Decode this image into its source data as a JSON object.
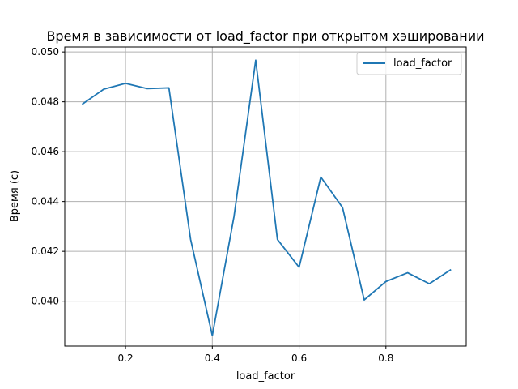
{
  "chart_data": {
    "type": "line",
    "title": "Время в зависимости от load_factor при открытом хэшировании",
    "xlabel": "load_factor",
    "ylabel": "Время (с)",
    "xlim": [
      0.06,
      0.985
    ],
    "ylim": [
      0.0382,
      0.0502
    ],
    "xticks": [
      0.2,
      0.4,
      0.6,
      0.8
    ],
    "xtick_labels": [
      "0.2",
      "0.4",
      "0.6",
      "0.8"
    ],
    "yticks": [
      0.04,
      0.042,
      0.044,
      0.046,
      0.048,
      0.05
    ],
    "ytick_labels": [
      "0.040",
      "0.042",
      "0.044",
      "0.046",
      "0.048",
      "0.050"
    ],
    "grid": true,
    "legend_position": "top-right",
    "series": [
      {
        "name": "load_factor",
        "color": "#1f77b4",
        "x": [
          0.1,
          0.15,
          0.2,
          0.25,
          0.3,
          0.35,
          0.4,
          0.45,
          0.5,
          0.55,
          0.6,
          0.65,
          0.7,
          0.75,
          0.8,
          0.85,
          0.9,
          0.95
        ],
        "y": [
          0.0479,
          0.04851,
          0.04874,
          0.04853,
          0.04856,
          0.04248,
          0.03862,
          0.0434,
          0.04967,
          0.04248,
          0.04136,
          0.04498,
          0.04376,
          0.04005,
          0.04079,
          0.04114,
          0.0407,
          0.04127
        ]
      }
    ]
  }
}
